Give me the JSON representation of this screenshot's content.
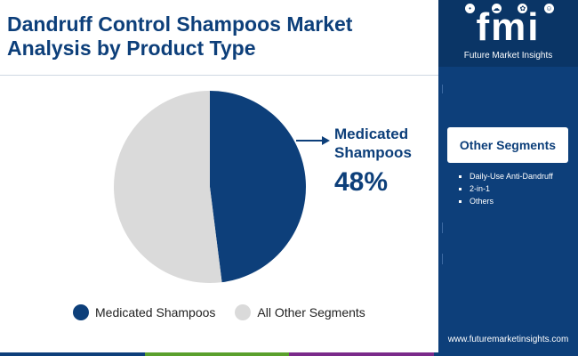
{
  "header": {
    "title_line1": "Dandruff Control Shampoos Market",
    "title_line2": "Analysis by Product Type"
  },
  "chart_data": {
    "type": "pie",
    "categories": [
      "Medicated Shampoos",
      "All Other Segments"
    ],
    "values": [
      48,
      52
    ],
    "colors": [
      "#0d3f7a",
      "#dadada"
    ],
    "unit": "%",
    "start_angle_deg": 0,
    "direction": "clockwise",
    "legend_position": "bottom",
    "callout": {
      "label": "Medicated Shampoos",
      "value": "48%",
      "color": "#0d3f7a"
    }
  },
  "legend": [
    {
      "label": "Medicated Shampoos",
      "color": "#0d3f7a"
    },
    {
      "label": "All Other Segments",
      "color": "#dadada"
    }
  ],
  "sidebar": {
    "logo_text": "fmi",
    "logo_subtitle": "Future Market Insights",
    "segments_title": "Other Segments",
    "segments": [
      "Daily-Use Anti-Dandruff",
      "2-in-1",
      "Others"
    ],
    "url": "www.futuremarketinsights.com"
  },
  "colors": {
    "brand": "#0d3f7a",
    "panel": "#0d3f7a",
    "bottom_bar": [
      "#0d3f7a",
      "#5aa02c",
      "#7a2a8a",
      "#0d3f7a"
    ]
  }
}
